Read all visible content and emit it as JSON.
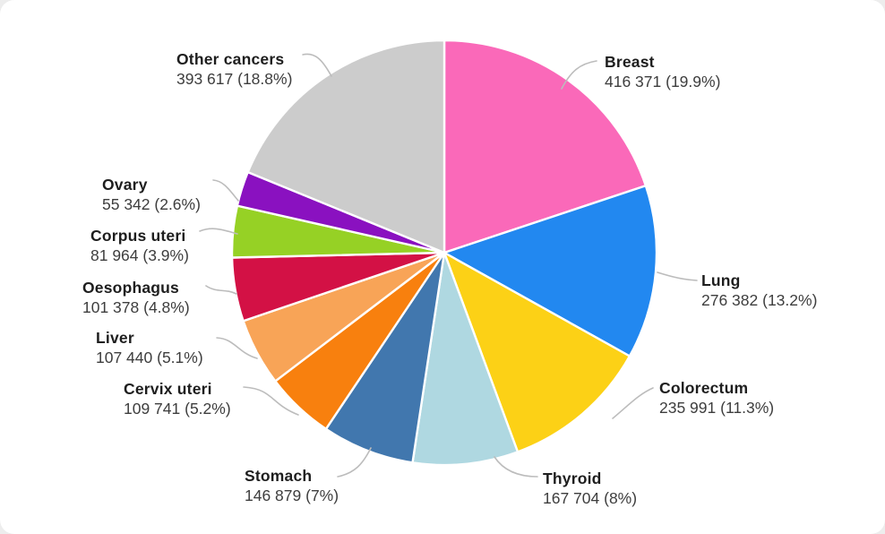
{
  "chart_data": {
    "type": "pie",
    "title": "",
    "legend_position": "none",
    "labels_position": "outside",
    "start_angle_deg": 0,
    "direction": "clockwise",
    "separator_color": "#ffffff",
    "leader_line_color": "#bcbcbc",
    "slices": [
      {
        "label": "Breast",
        "value": 416371,
        "pct": 19.9,
        "value_label": "416 371 (19.9%)",
        "color": "#FA69B9"
      },
      {
        "label": "Lung",
        "value": 276382,
        "pct": 13.2,
        "value_label": "276 382 (13.2%)",
        "color": "#2288F0"
      },
      {
        "label": "Colorectum",
        "value": 235991,
        "pct": 11.3,
        "value_label": "235 991 (11.3%)",
        "color": "#FCD116"
      },
      {
        "label": "Thyroid",
        "value": 167704,
        "pct": 8,
        "value_label": "167 704 (8%)",
        "color": "#AFD8E1"
      },
      {
        "label": "Stomach",
        "value": 146879,
        "pct": 7,
        "value_label": "146 879 (7%)",
        "color": "#4177AE"
      },
      {
        "label": "Cervix uteri",
        "value": 109741,
        "pct": 5.2,
        "value_label": "109 741 (5.2%)",
        "color": "#F8800E"
      },
      {
        "label": "Liver",
        "value": 107440,
        "pct": 5.1,
        "value_label": "107 440 (5.1%)",
        "color": "#F8A457"
      },
      {
        "label": "Oesophagus",
        "value": 101378,
        "pct": 4.8,
        "value_label": "101 378 (4.8%)",
        "color": "#D31145"
      },
      {
        "label": "Corpus uteri",
        "value": 81964,
        "pct": 3.9,
        "value_label": "81 964 (3.9%)",
        "color": "#96D125"
      },
      {
        "label": "Ovary",
        "value": 55342,
        "pct": 2.6,
        "value_label": "55 342 (2.6%)",
        "color": "#8A11C0"
      },
      {
        "label": "Other cancers",
        "value": 393617,
        "pct": 18.8,
        "value_label": "393 617 (18.8%)",
        "color": "#CCCCCC"
      }
    ]
  }
}
